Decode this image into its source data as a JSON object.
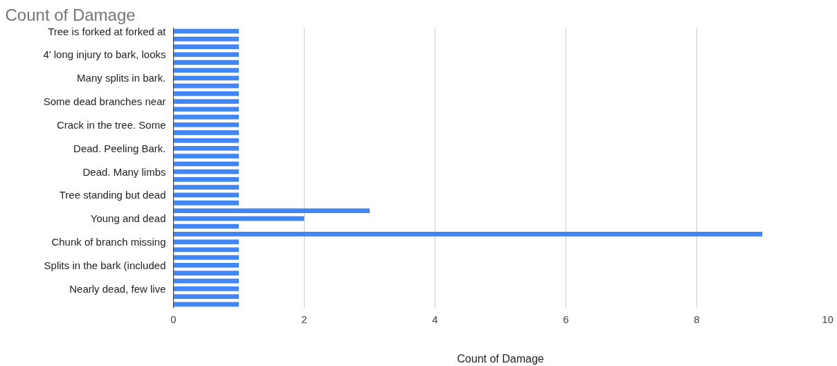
{
  "chart_data": {
    "type": "bar",
    "orientation": "horizontal",
    "title": "Count of Damage",
    "xlabel": "Count of Damage",
    "categories": [
      "Tree is forked at forked at",
      null,
      null,
      "4' long injury to bark, looks",
      null,
      null,
      "Many splits in bark.",
      null,
      null,
      "Some dead branches near",
      null,
      null,
      "Crack in the tree. Some",
      null,
      null,
      "Dead. Peeling Bark.",
      null,
      null,
      "Dead. Many limbs",
      null,
      null,
      "Tree standing but dead",
      null,
      null,
      "Young and dead",
      null,
      null,
      "Chunk of branch missing",
      null,
      null,
      "Splits in the bark (included",
      null,
      null,
      "Nearly dead, few live",
      null,
      null
    ],
    "values": [
      1,
      1,
      1,
      1,
      1,
      1,
      1,
      1,
      1,
      1,
      1,
      1,
      1,
      1,
      1,
      1,
      1,
      1,
      1,
      1,
      1,
      1,
      1,
      3,
      2,
      1,
      9,
      1,
      1,
      1,
      1,
      1,
      1,
      1,
      1,
      1
    ],
    "color": "#4285f4",
    "xlim": [
      0,
      10
    ],
    "xticks": [
      0,
      2,
      4,
      6,
      8,
      10
    ],
    "grid": "x"
  }
}
